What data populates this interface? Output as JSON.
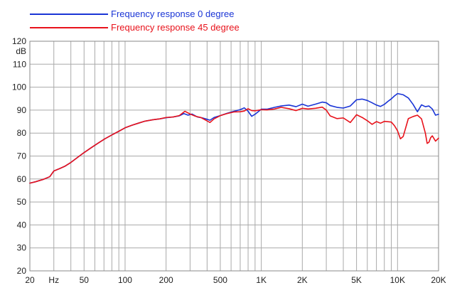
{
  "chart_data": {
    "type": "line",
    "x_scale": "log",
    "xlim": [
      20,
      20000
    ],
    "ylim": [
      20,
      120
    ],
    "y_unit_label": "dB",
    "grid": true,
    "legend_placement": "top-left",
    "x_ticks": [
      {
        "value": 20,
        "label": "20"
      },
      {
        "value": 30,
        "label": "Hz"
      },
      {
        "value": 50,
        "label": "50"
      },
      {
        "value": 100,
        "label": "100"
      },
      {
        "value": 200,
        "label": "200"
      },
      {
        "value": 500,
        "label": "500"
      },
      {
        "value": 1000,
        "label": "1K"
      },
      {
        "value": 2000,
        "label": "2K"
      },
      {
        "value": 5000,
        "label": "5K"
      },
      {
        "value": 10000,
        "label": "10K"
      },
      {
        "value": 20000,
        "label": "20K"
      }
    ],
    "y_ticks": [
      {
        "value": 20,
        "label": "20"
      },
      {
        "value": 30,
        "label": "30"
      },
      {
        "value": 40,
        "label": "40"
      },
      {
        "value": 50,
        "label": "50"
      },
      {
        "value": 60,
        "label": "60"
      },
      {
        "value": 70,
        "label": "70"
      },
      {
        "value": 80,
        "label": "80"
      },
      {
        "value": 90,
        "label": "90"
      },
      {
        "value": 100,
        "label": "100"
      },
      {
        "value": 110,
        "label": "110"
      },
      {
        "value": 120,
        "label": "120"
      }
    ],
    "series": [
      {
        "name": "Frequency response 0 degree",
        "color": "#1a35d6",
        "points": [
          [
            20,
            58.2
          ],
          [
            22,
            58.8
          ],
          [
            25,
            59.8
          ],
          [
            28,
            61
          ],
          [
            30,
            63.5
          ],
          [
            33,
            64.5
          ],
          [
            36,
            65.5
          ],
          [
            40,
            67.2
          ],
          [
            45,
            69.5
          ],
          [
            50,
            71.5
          ],
          [
            56,
            73.5
          ],
          [
            63,
            75.5
          ],
          [
            71,
            77.5
          ],
          [
            80,
            79.2
          ],
          [
            90,
            80.8
          ],
          [
            100,
            82.3
          ],
          [
            112,
            83.4
          ],
          [
            125,
            84.3
          ],
          [
            140,
            85.2
          ],
          [
            160,
            85.8
          ],
          [
            180,
            86.2
          ],
          [
            200,
            86.7
          ],
          [
            225,
            87
          ],
          [
            250,
            87.5
          ],
          [
            270,
            88.5
          ],
          [
            290,
            87.8
          ],
          [
            310,
            88.3
          ],
          [
            340,
            87
          ],
          [
            370,
            86.6
          ],
          [
            400,
            86
          ],
          [
            420,
            85.6
          ],
          [
            450,
            86.8
          ],
          [
            500,
            87.6
          ],
          [
            560,
            88.6
          ],
          [
            630,
            89.5
          ],
          [
            700,
            90.2
          ],
          [
            750,
            91
          ],
          [
            800,
            89.5
          ],
          [
            850,
            87.3
          ],
          [
            900,
            88.2
          ],
          [
            1000,
            90.4
          ],
          [
            1100,
            90.4
          ],
          [
            1250,
            91.2
          ],
          [
            1400,
            91.8
          ],
          [
            1600,
            92.2
          ],
          [
            1800,
            91.5
          ],
          [
            2000,
            92.6
          ],
          [
            2200,
            91.7
          ],
          [
            2500,
            92.6
          ],
          [
            2800,
            93.5
          ],
          [
            3000,
            93.2
          ],
          [
            3200,
            92
          ],
          [
            3600,
            91.2
          ],
          [
            4000,
            90.9
          ],
          [
            4500,
            91.8
          ],
          [
            5000,
            94.5
          ],
          [
            5500,
            94.8
          ],
          [
            6000,
            94.2
          ],
          [
            6500,
            93.2
          ],
          [
            7000,
            92.2
          ],
          [
            7500,
            91.6
          ],
          [
            8000,
            92.5
          ],
          [
            8500,
            93.8
          ],
          [
            9000,
            94.9
          ],
          [
            9500,
            96.2
          ],
          [
            10000,
            97.2
          ],
          [
            11000,
            96.7
          ],
          [
            12000,
            95.3
          ],
          [
            13000,
            92.5
          ],
          [
            14000,
            89.3
          ],
          [
            15000,
            92.3
          ],
          [
            16000,
            91.5
          ],
          [
            17000,
            91.8
          ],
          [
            18000,
            90.5
          ],
          [
            19000,
            87.8
          ],
          [
            20000,
            88.2
          ]
        ]
      },
      {
        "name": "Frequency response 45 degree",
        "color": "#e8121b",
        "points": [
          [
            20,
            58.2
          ],
          [
            22,
            58.8
          ],
          [
            25,
            59.8
          ],
          [
            28,
            61
          ],
          [
            30,
            63.5
          ],
          [
            33,
            64.5
          ],
          [
            36,
            65.5
          ],
          [
            40,
            67.2
          ],
          [
            45,
            69.5
          ],
          [
            50,
            71.5
          ],
          [
            56,
            73.5
          ],
          [
            63,
            75.5
          ],
          [
            71,
            77.5
          ],
          [
            80,
            79.2
          ],
          [
            90,
            80.8
          ],
          [
            100,
            82.3
          ],
          [
            112,
            83.4
          ],
          [
            125,
            84.3
          ],
          [
            140,
            85.2
          ],
          [
            160,
            85.8
          ],
          [
            180,
            86.2
          ],
          [
            200,
            86.8
          ],
          [
            225,
            87
          ],
          [
            250,
            87.6
          ],
          [
            275,
            89.5
          ],
          [
            300,
            88.3
          ],
          [
            330,
            87.3
          ],
          [
            360,
            86.8
          ],
          [
            400,
            85.3
          ],
          [
            420,
            84.6
          ],
          [
            450,
            86.2
          ],
          [
            500,
            87.6
          ],
          [
            560,
            88.5
          ],
          [
            630,
            89.2
          ],
          [
            700,
            89.3
          ],
          [
            750,
            89.6
          ],
          [
            800,
            90.6
          ],
          [
            850,
            89.8
          ],
          [
            900,
            89.7
          ],
          [
            1000,
            90.2
          ],
          [
            1100,
            90.1
          ],
          [
            1250,
            90.5
          ],
          [
            1400,
            91.2
          ],
          [
            1600,
            90.6
          ],
          [
            1800,
            89.8
          ],
          [
            2000,
            90.8
          ],
          [
            2200,
            90.5
          ],
          [
            2500,
            90.8
          ],
          [
            2800,
            91.3
          ],
          [
            3000,
            90
          ],
          [
            3200,
            87.5
          ],
          [
            3600,
            86.3
          ],
          [
            4000,
            86.6
          ],
          [
            4500,
            84.6
          ],
          [
            5000,
            88
          ],
          [
            5500,
            86.8
          ],
          [
            6000,
            85.4
          ],
          [
            6500,
            83.8
          ],
          [
            7000,
            85
          ],
          [
            7500,
            84.3
          ],
          [
            8000,
            85.1
          ],
          [
            9000,
            84.8
          ],
          [
            9500,
            83.2
          ],
          [
            10000,
            81
          ],
          [
            10500,
            77.5
          ],
          [
            11000,
            78.5
          ],
          [
            12000,
            86.3
          ],
          [
            13000,
            87.2
          ],
          [
            14000,
            87.8
          ],
          [
            15000,
            86.2
          ],
          [
            16000,
            80
          ],
          [
            16500,
            75.5
          ],
          [
            17000,
            76
          ],
          [
            17500,
            78
          ],
          [
            18000,
            78.8
          ],
          [
            19000,
            76.5
          ],
          [
            20000,
            77.8
          ]
        ]
      }
    ]
  }
}
